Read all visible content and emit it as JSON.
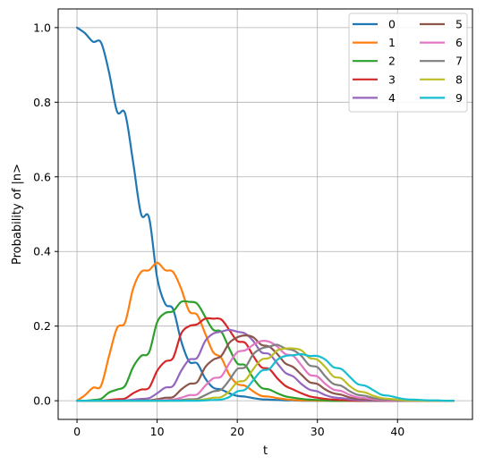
{
  "chart_data": {
    "type": "line",
    "title": "",
    "xlabel": "t",
    "ylabel": "Probability of |n>",
    "xlim": [
      -2.35,
      49.35
    ],
    "ylim": [
      -0.05,
      1.05
    ],
    "x_ticks": [
      0,
      10,
      20,
      30,
      40
    ],
    "y_ticks": [
      0.0,
      0.2,
      0.4,
      0.6,
      0.8,
      1.0
    ],
    "x_tick_labels": [
      "0",
      "10",
      "20",
      "30",
      "40"
    ],
    "y_tick_labels": [
      "0.0",
      "0.2",
      "0.4",
      "0.6",
      "0.8",
      "1.0"
    ],
    "grid": true,
    "legend": {
      "placement": "top-right",
      "columns": 2
    },
    "x": [
      0,
      1,
      2,
      3,
      4,
      5,
      6,
      7,
      8,
      9,
      10,
      11,
      12,
      13,
      14,
      15,
      16,
      17,
      18,
      19,
      20,
      21,
      22,
      23,
      24,
      25,
      26,
      27,
      28,
      29,
      30,
      31,
      32,
      33,
      34,
      35,
      36,
      37,
      38,
      39,
      40,
      41,
      42,
      43,
      44,
      45,
      46,
      47
    ],
    "series": [
      {
        "name": "0",
        "color": "#1f77b4",
        "values": [
          1.0,
          0.985,
          0.962,
          0.96,
          0.88,
          0.775,
          0.77,
          0.64,
          0.5,
          0.49,
          0.33,
          0.26,
          0.245,
          0.16,
          0.105,
          0.1,
          0.06,
          0.035,
          0.03,
          0.02,
          0.013,
          0.011,
          0.007,
          0.004,
          0.003,
          0.002,
          0.001,
          0.001,
          0.0,
          0.0,
          0.0,
          0.0,
          0.0,
          0.0,
          0.0,
          0.0,
          0.0,
          0.0,
          0.0,
          0.0,
          0.0,
          0.0,
          0.0,
          0.0,
          0.0,
          0.0,
          0.0,
          0.0
        ]
      },
      {
        "name": "1",
        "color": "#ff7f0e",
        "values": [
          0.0,
          0.015,
          0.035,
          0.04,
          0.12,
          0.195,
          0.21,
          0.3,
          0.345,
          0.35,
          0.37,
          0.35,
          0.345,
          0.3,
          0.24,
          0.23,
          0.18,
          0.13,
          0.115,
          0.07,
          0.045,
          0.04,
          0.025,
          0.013,
          0.011,
          0.007,
          0.004,
          0.002,
          0.001,
          0.001,
          0.0,
          0.0,
          0.0,
          0.0,
          0.0,
          0.0,
          0.0,
          0.0,
          0.0,
          0.0,
          0.0,
          0.0,
          0.0,
          0.0,
          0.0,
          0.0,
          0.0,
          0.0
        ]
      },
      {
        "name": "2",
        "color": "#2ca02c",
        "values": [
          0.0,
          0.0,
          0.002,
          0.005,
          0.022,
          0.03,
          0.04,
          0.09,
          0.12,
          0.13,
          0.21,
          0.235,
          0.24,
          0.265,
          0.265,
          0.26,
          0.225,
          0.19,
          0.185,
          0.14,
          0.1,
          0.095,
          0.06,
          0.035,
          0.03,
          0.02,
          0.012,
          0.008,
          0.005,
          0.003,
          0.002,
          0.001,
          0.0,
          0.0,
          0.0,
          0.0,
          0.0,
          0.0,
          0.0,
          0.0,
          0.0,
          0.0,
          0.0,
          0.0,
          0.0,
          0.0,
          0.0,
          0.0
        ]
      },
      {
        "name": "3",
        "color": "#d62728",
        "values": [
          0.0,
          0.0,
          0.0,
          0.0,
          0.002,
          0.004,
          0.006,
          0.02,
          0.03,
          0.035,
          0.08,
          0.105,
          0.115,
          0.18,
          0.2,
          0.205,
          0.22,
          0.22,
          0.218,
          0.19,
          0.16,
          0.155,
          0.12,
          0.09,
          0.085,
          0.06,
          0.04,
          0.03,
          0.02,
          0.012,
          0.008,
          0.005,
          0.003,
          0.002,
          0.001,
          0.0,
          0.0,
          0.0,
          0.0,
          0.0,
          0.0,
          0.0,
          0.0,
          0.0,
          0.0,
          0.0,
          0.0,
          0.0
        ]
      },
      {
        "name": "4",
        "color": "#9467bd",
        "values": [
          0.0,
          0.0,
          0.0,
          0.0,
          0.0,
          0.0,
          0.001,
          0.003,
          0.005,
          0.007,
          0.02,
          0.035,
          0.04,
          0.08,
          0.11,
          0.115,
          0.16,
          0.18,
          0.185,
          0.19,
          0.185,
          0.18,
          0.16,
          0.13,
          0.125,
          0.1,
          0.075,
          0.065,
          0.045,
          0.03,
          0.025,
          0.015,
          0.009,
          0.007,
          0.004,
          0.002,
          0.001,
          0.0,
          0.0,
          0.0,
          0.0,
          0.0,
          0.0,
          0.0,
          0.0,
          0.0,
          0.0,
          0.0
        ]
      },
      {
        "name": "5",
        "color": "#8c564b",
        "values": [
          0.0,
          0.0,
          0.0,
          0.0,
          0.0,
          0.0,
          0.0,
          0.0,
          0.001,
          0.001,
          0.004,
          0.008,
          0.01,
          0.03,
          0.045,
          0.05,
          0.09,
          0.11,
          0.12,
          0.155,
          0.17,
          0.175,
          0.17,
          0.15,
          0.145,
          0.125,
          0.1,
          0.09,
          0.07,
          0.05,
          0.045,
          0.03,
          0.02,
          0.016,
          0.009,
          0.005,
          0.004,
          0.002,
          0.001,
          0.0,
          0.0,
          0.0,
          0.0,
          0.0,
          0.0,
          0.0,
          0.0,
          0.0
        ]
      },
      {
        "name": "6",
        "color": "#e377c2",
        "values": [
          0.0,
          0.0,
          0.0,
          0.0,
          0.0,
          0.0,
          0.0,
          0.0,
          0.0,
          0.0,
          0.001,
          0.002,
          0.003,
          0.008,
          0.015,
          0.017,
          0.04,
          0.06,
          0.065,
          0.1,
          0.13,
          0.135,
          0.15,
          0.16,
          0.158,
          0.145,
          0.125,
          0.12,
          0.095,
          0.07,
          0.065,
          0.045,
          0.03,
          0.026,
          0.016,
          0.009,
          0.007,
          0.004,
          0.002,
          0.001,
          0.0,
          0.0,
          0.0,
          0.0,
          0.0,
          0.0,
          0.0,
          0.0
        ]
      },
      {
        "name": "7",
        "color": "#7f7f7f",
        "values": [
          0.0,
          0.0,
          0.0,
          0.0,
          0.0,
          0.0,
          0.0,
          0.0,
          0.0,
          0.0,
          0.0,
          0.0,
          0.001,
          0.002,
          0.004,
          0.005,
          0.015,
          0.025,
          0.03,
          0.055,
          0.085,
          0.09,
          0.125,
          0.14,
          0.145,
          0.15,
          0.14,
          0.135,
          0.12,
          0.095,
          0.09,
          0.065,
          0.045,
          0.04,
          0.026,
          0.016,
          0.013,
          0.007,
          0.004,
          0.003,
          0.001,
          0.0,
          0.0,
          0.0,
          0.0,
          0.0,
          0.0,
          0.0
        ]
      },
      {
        "name": "8",
        "color": "#bcbd22",
        "values": [
          0.0,
          0.0,
          0.0,
          0.0,
          0.0,
          0.0,
          0.0,
          0.0,
          0.0,
          0.0,
          0.0,
          0.0,
          0.0,
          0.0,
          0.001,
          0.001,
          0.004,
          0.008,
          0.01,
          0.025,
          0.05,
          0.055,
          0.085,
          0.11,
          0.115,
          0.135,
          0.14,
          0.14,
          0.135,
          0.115,
          0.11,
          0.09,
          0.065,
          0.06,
          0.04,
          0.026,
          0.022,
          0.013,
          0.007,
          0.005,
          0.003,
          0.001,
          0.001,
          0.0,
          0.0,
          0.0,
          0.0,
          0.0
        ]
      },
      {
        "name": "9",
        "color": "#17becf",
        "values": [
          0.0,
          0.0,
          0.0,
          0.0,
          0.0,
          0.0,
          0.0,
          0.0,
          0.0,
          0.0,
          0.0,
          0.0,
          0.0,
          0.0,
          0.0,
          0.0,
          0.001,
          0.002,
          0.003,
          0.01,
          0.025,
          0.03,
          0.055,
          0.08,
          0.085,
          0.11,
          0.12,
          0.122,
          0.125,
          0.12,
          0.12,
          0.11,
          0.09,
          0.085,
          0.065,
          0.045,
          0.04,
          0.028,
          0.016,
          0.013,
          0.008,
          0.004,
          0.003,
          0.002,
          0.001,
          0.001,
          0.0,
          0.0
        ]
      }
    ]
  }
}
